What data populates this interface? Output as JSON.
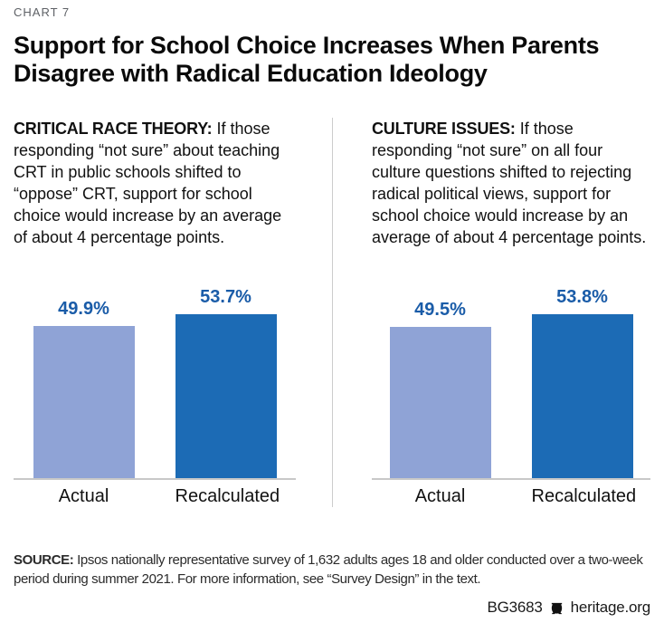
{
  "header": {
    "eyebrow": "CHART 7",
    "title_line1": "Support for School Choice Increases When Parents",
    "title_line2": "Disagree with Radical Education Ideology"
  },
  "panels": [
    {
      "heading": "CRITICAL RACE THEORY:",
      "body": "If those responding “not sure” about teaching CRT in public schools shifted to “oppose” CRT, support for school choice would increase by an average of about 4 percentage points."
    },
    {
      "heading": "CULTURE ISSUES:",
      "body": "If those responding “not sure” on all four culture questions shifted to rejecting radical political views, support for school choice would increase by an average of about 4 percentage points."
    }
  ],
  "chart_data": [
    {
      "type": "bar",
      "panel": "Critical Race Theory",
      "categories": [
        "Actual",
        "Recalculated"
      ],
      "values": [
        49.9,
        53.7
      ],
      "value_labels": [
        "49.9%",
        "53.7%"
      ],
      "ylim": [
        0,
        63
      ],
      "grid": false,
      "legend": false,
      "bar_colors": [
        "#8fa3d6",
        "#1c6bb5"
      ]
    },
    {
      "type": "bar",
      "panel": "Culture Issues",
      "categories": [
        "Actual",
        "Recalculated"
      ],
      "values": [
        49.5,
        53.8
      ],
      "value_labels": [
        "49.5%",
        "53.8%"
      ],
      "ylim": [
        0,
        63
      ],
      "grid": false,
      "legend": false,
      "bar_colors": [
        "#8fa3d6",
        "#1c6bb5"
      ]
    }
  ],
  "source": {
    "label": "SOURCE:",
    "text": "Ipsos nationally representative survey of 1,632 adults ages 18 and older conducted over a two-week period during summer 2021. For more information, see “Survey Design” in the text."
  },
  "footer": {
    "doc_id": "BG3683",
    "site": "heritage.org",
    "logo_icon": "heritage-bell-icon"
  },
  "colors": {
    "bar_light": "#8fa3d6",
    "bar_dark": "#1c6bb5",
    "value_label": "#1a5ca8",
    "divider": "#cccccc",
    "baseline": "#c8c8c8",
    "eyebrow_text": "#5e6166"
  }
}
